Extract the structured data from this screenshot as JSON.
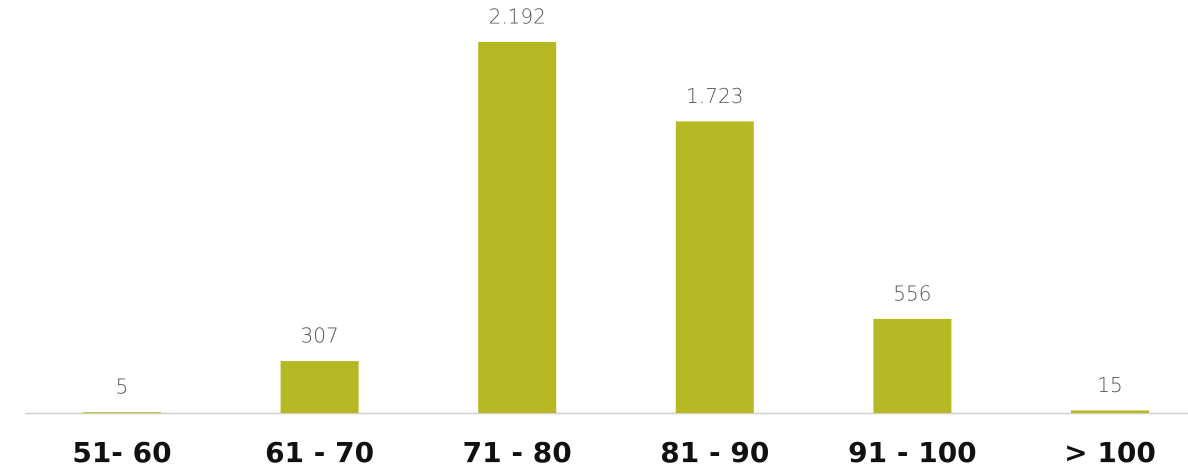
{
  "chart_data": {
    "type": "bar",
    "categories": [
      "51- 60",
      "61 - 70",
      "71 - 80",
      "81 - 90",
      "91 - 100",
      "> 100"
    ],
    "values": [
      5,
      307,
      2192,
      1723,
      556,
      15
    ],
    "value_labels": [
      "5",
      "307",
      "2.192",
      "1.723",
      "556",
      "15"
    ],
    "color": "#b5b823"
  }
}
